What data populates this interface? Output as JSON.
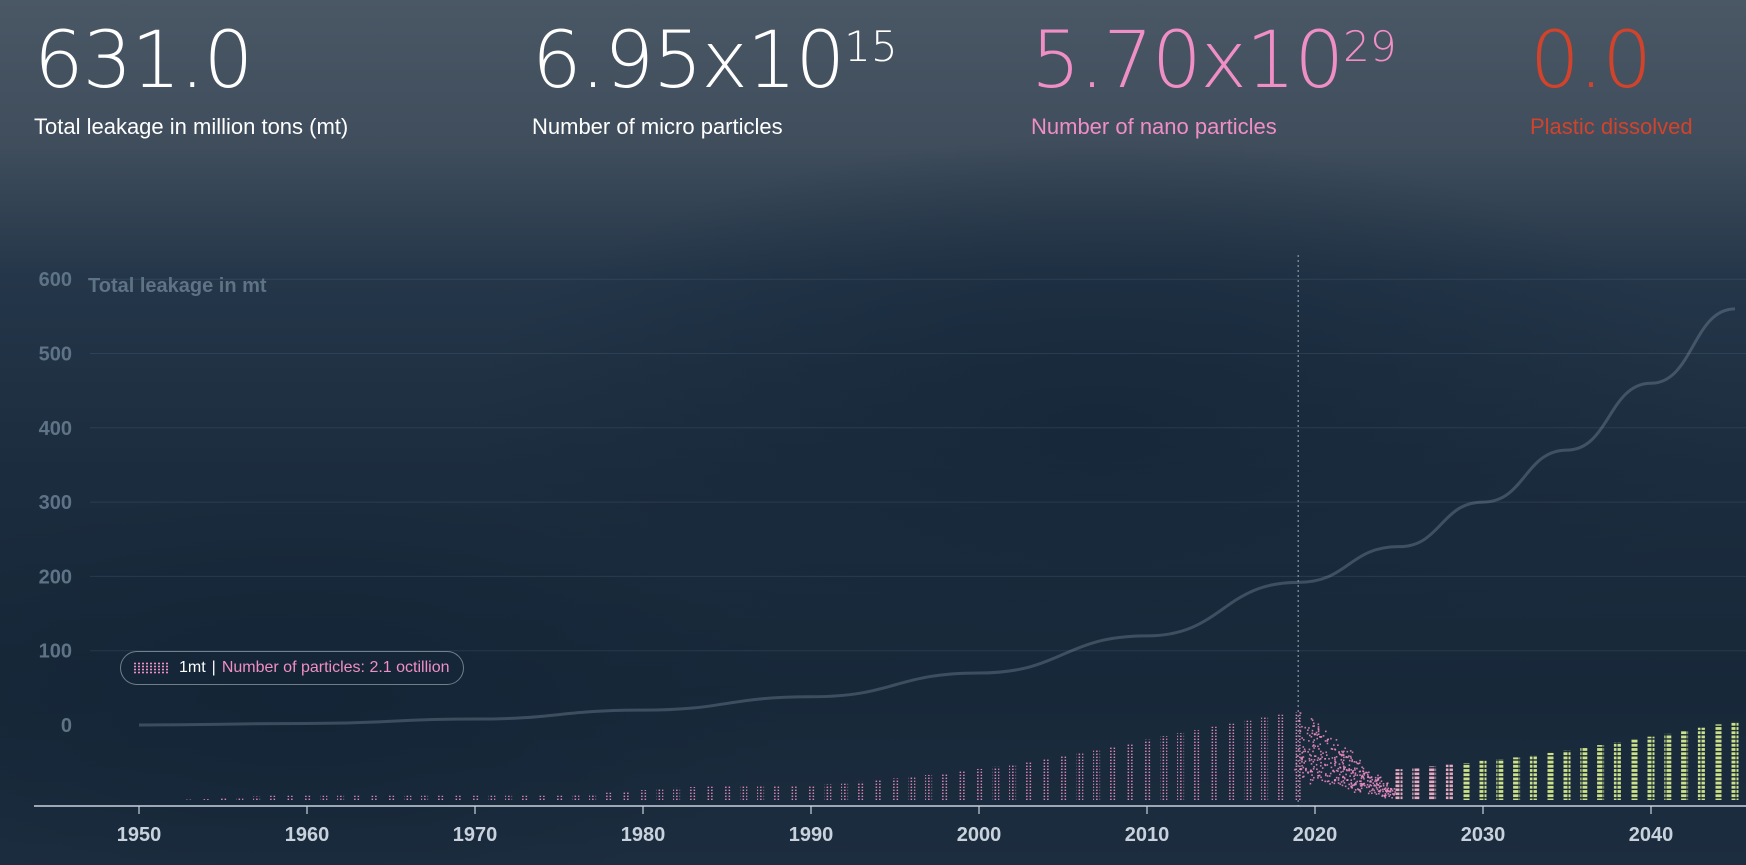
{
  "stats": [
    {
      "value": "631.0",
      "label": "Total leakage in million tons (mt)",
      "color": "#ffffff"
    },
    {
      "mantissa": "6.95x10",
      "exponent": "15",
      "label": "Number of micro particles",
      "color": "#ffffff"
    },
    {
      "mantissa": "5.70x10",
      "exponent": "29",
      "label": "Number of nano particles",
      "color": "#f08ec6"
    },
    {
      "value": "0.0",
      "label": "Plastic dissolved",
      "color": "#d2432c"
    }
  ],
  "legend": {
    "unit": "1mt",
    "separator": "|",
    "text": "Number of particles: 2.1 octillion"
  },
  "colors": {
    "pink": "#f08ec6",
    "red": "#d2432c",
    "future": "#d6ec8c",
    "axis": "#c9d2dc",
    "muted": "#5f7387"
  },
  "chart_data": {
    "type": "bar",
    "title": "",
    "ylabel": "Total leakage in mt",
    "xlabel": "",
    "ylim": [
      0,
      600
    ],
    "yticks": [
      600,
      500,
      400,
      300,
      200,
      100,
      0
    ],
    "xticks": [
      1950,
      1960,
      1970,
      1980,
      1990,
      2000,
      2010,
      2020,
      2030,
      2040
    ],
    "grid": true,
    "marker_year": 2019,
    "cumulative_line": [
      [
        1950,
        0
      ],
      [
        1960,
        2
      ],
      [
        1970,
        8
      ],
      [
        1980,
        20
      ],
      [
        1990,
        38
      ],
      [
        2000,
        70
      ],
      [
        2010,
        120
      ],
      [
        2019,
        192
      ],
      [
        2025,
        240
      ],
      [
        2030,
        300
      ],
      [
        2035,
        370
      ],
      [
        2040,
        460
      ],
      [
        2045,
        560
      ]
    ],
    "series": [
      {
        "name": "Annual leakage",
        "x": [
          1953,
          1954,
          1955,
          1956,
          1957,
          1958,
          1959,
          1960,
          1961,
          1962,
          1963,
          1964,
          1965,
          1966,
          1967,
          1968,
          1969,
          1970,
          1971,
          1972,
          1973,
          1974,
          1975,
          1976,
          1977,
          1978,
          1979,
          1980,
          1981,
          1982,
          1983,
          1984,
          1985,
          1986,
          1987,
          1988,
          1989,
          1990,
          1991,
          1992,
          1993,
          1994,
          1995,
          1996,
          1997,
          1998,
          1999,
          2000,
          2001,
          2002,
          2003,
          2004,
          2005,
          2006,
          2007,
          2008,
          2009,
          2010,
          2011,
          2012,
          2013,
          2014,
          2015,
          2016,
          2017,
          2018,
          2019
        ],
        "values": [
          1,
          2,
          4,
          6,
          8,
          10,
          10,
          10,
          10,
          10,
          10,
          10,
          10,
          10,
          10,
          10,
          10,
          10,
          10,
          10,
          10,
          10,
          10,
          11,
          14,
          17,
          20,
          23,
          26,
          28,
          30,
          31,
          32,
          32,
          32,
          32,
          33,
          34,
          36,
          38,
          42,
          46,
          50,
          54,
          58,
          62,
          67,
          72,
          77,
          83,
          89,
          96,
          103,
          110,
          118,
          125,
          132,
          140,
          148,
          155,
          162,
          170,
          177,
          184,
          192,
          198,
          203
        ]
      },
      {
        "name": "Projection",
        "x": [
          2025,
          2026,
          2027,
          2028,
          2029,
          2030,
          2031,
          2032,
          2033,
          2034,
          2035,
          2036,
          2037,
          2038,
          2039,
          2040,
          2041,
          2042,
          2043,
          2044,
          2045
        ],
        "values": [
          55,
          57,
          60,
          63,
          66,
          70,
          73,
          76,
          80,
          84,
          88,
          93,
          98,
          103,
          108,
          113,
          118,
          123,
          129,
          135,
          140
        ]
      }
    ]
  }
}
